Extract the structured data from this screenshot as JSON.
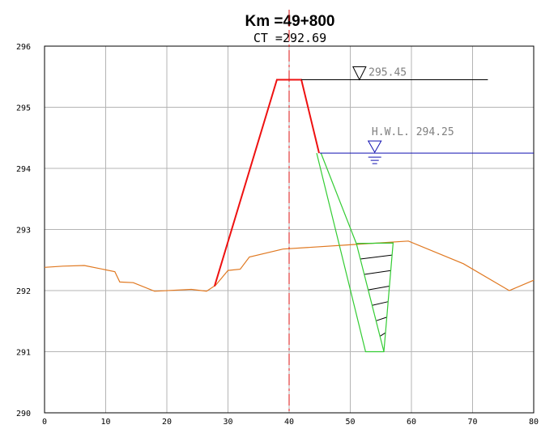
{
  "title": "Km =49+800",
  "subtitle": "CT =292.69",
  "axes": {
    "x_ticks": [
      "0",
      "10",
      "20",
      "30",
      "40",
      "50",
      "60",
      "70",
      "80"
    ],
    "y_ticks": [
      "296",
      "295",
      "294",
      "293",
      "292",
      "291",
      "290"
    ]
  },
  "annotations": {
    "crest_level": "295.45",
    "hwl_label": "H.W.L. 294.25"
  },
  "colors": {
    "ground": "#e07820",
    "embankment": "#ee1111",
    "trench": "#33cc33",
    "hwl": "#1010b0",
    "centerline": "#dd1111",
    "grid": "#b4b4b4"
  },
  "chart_data": {
    "type": "cross-section",
    "title": "Km =49+800",
    "xlim": [
      0,
      80
    ],
    "ylim": [
      290,
      296
    ],
    "centerline_x": 40,
    "crest_level": 295.45,
    "hwl": 294.25,
    "series": [
      {
        "role": "natural-ground",
        "points": [
          [
            0,
            292.38
          ],
          [
            3,
            292.4
          ],
          [
            6.5,
            292.41
          ],
          [
            11.5,
            292.31
          ],
          [
            12.3,
            292.14
          ],
          [
            14.5,
            292.13
          ],
          [
            18,
            291.99
          ],
          [
            24,
            292.02
          ],
          [
            26.5,
            291.99
          ],
          [
            28,
            292.09
          ],
          [
            30,
            292.33
          ],
          [
            32,
            292.35
          ],
          [
            33.5,
            292.55
          ],
          [
            39,
            292.68
          ],
          [
            50,
            292.75
          ],
          [
            59.5,
            292.81
          ],
          [
            68.5,
            292.44
          ],
          [
            76,
            292.0
          ],
          [
            80,
            292.17
          ]
        ]
      },
      {
        "role": "embankment",
        "points": [
          [
            27.8,
            292.07
          ],
          [
            38,
            295.45
          ],
          [
            42,
            295.45
          ],
          [
            44.9,
            294.25
          ]
        ]
      },
      {
        "role": "cutoff-trench",
        "points": [
          [
            44.5,
            294.25
          ],
          [
            52.5,
            291.0
          ],
          [
            55.5,
            291.0
          ],
          [
            57,
            292.78
          ],
          [
            51,
            292.77
          ],
          [
            45.2,
            294.25
          ]
        ]
      },
      {
        "role": "crest-level-line",
        "points": [
          [
            42,
            295.45
          ],
          [
            72.5,
            295.45
          ]
        ]
      },
      {
        "role": "hwl-line",
        "points": [
          [
            45,
            294.25
          ],
          [
            80,
            294.25
          ]
        ]
      }
    ]
  }
}
